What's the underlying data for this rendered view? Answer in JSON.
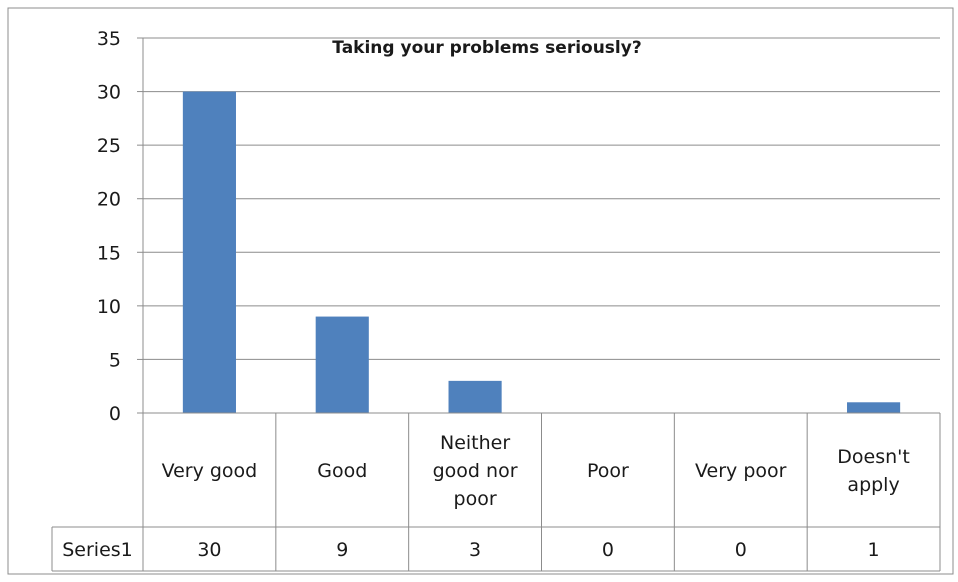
{
  "chart_data": {
    "type": "bar",
    "title": "Taking your problems seriously?",
    "categories": [
      [
        "Very good"
      ],
      [
        "Good"
      ],
      [
        "Neither",
        "good nor",
        "poor"
      ],
      [
        "Poor"
      ],
      [
        "Very poor"
      ],
      [
        "Doesn't",
        "apply"
      ]
    ],
    "category_labels": [
      "Very good",
      "Good",
      "Neither good nor poor",
      "Poor",
      "Very poor",
      "Doesn't apply"
    ],
    "series": [
      {
        "name": "Series1",
        "values": [
          30,
          9,
          3,
          0,
          0,
          1
        ],
        "color": "#4f81bd"
      }
    ],
    "ylim": [
      0,
      35
    ],
    "yticks": [
      0,
      5,
      10,
      15,
      20,
      25,
      30,
      35
    ],
    "grid": true,
    "data_table": true,
    "legend": "none"
  }
}
